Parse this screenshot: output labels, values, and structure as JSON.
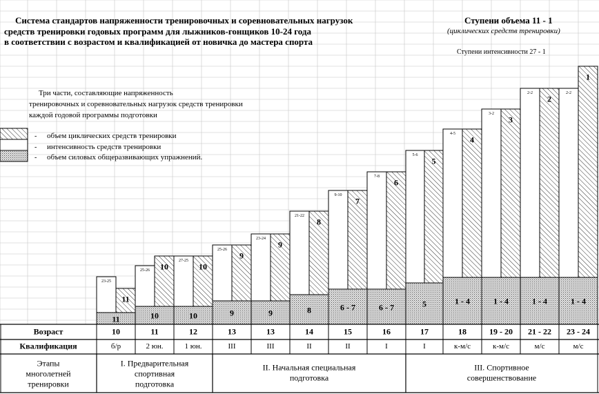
{
  "title_lines": [
    "Система стандартов напряженности тренировочных и соревновательных нагрузок",
    "средств тренировки годовых программ для лыжников-гонщиков  10-24 года",
    "в соответствии с возрастом и квалификацией  от новичка до мастера спорта"
  ],
  "right_header": {
    "title": "Ступени объема 11 - 1",
    "subtitle": "(циклических средств тренировки)",
    "intensity": "Ступени интенсивности 27 - 1"
  },
  "description_lines": [
    "Три части, составляющие напряженность",
    "тренировочных и соревновательных нагрузок средств тренировки",
    "каждой годовой программы подготовки"
  ],
  "legend": [
    {
      "pattern": "hatch",
      "dash": "-",
      "text": "объем циклических средств тренировки"
    },
    {
      "pattern": "blank",
      "dash": "-",
      "text": "интенсивность средств тренировки"
    },
    {
      "pattern": "dots",
      "dash": "-",
      "text": "объем силовых общеразвивающих упражнений."
    }
  ],
  "chart_data": {
    "type": "bar",
    "stacking": "stacked",
    "columns": [
      {
        "age": "10",
        "qual": "б/р",
        "intensity": "23-25",
        "volume": "11",
        "strength": "11"
      },
      {
        "age": "11",
        "qual": "2 юн.",
        "intensity": "25-26",
        "volume": "10",
        "strength": "10"
      },
      {
        "age": "12",
        "qual": "1 юн.",
        "intensity": "27-25",
        "volume": "10",
        "strength": "10"
      },
      {
        "age": "13",
        "qual": "III",
        "intensity": "25-26",
        "volume": "9",
        "strength": "9"
      },
      {
        "age": "13",
        "qual": "III",
        "intensity": "23-24",
        "volume": "9",
        "strength": "9"
      },
      {
        "age": "14",
        "qual": "II",
        "intensity": "21-22",
        "volume": "8",
        "strength": "8"
      },
      {
        "age": "15",
        "qual": "II",
        "intensity": "9-10",
        "volume": "7",
        "strength": "6 - 7"
      },
      {
        "age": "16",
        "qual": "I",
        "intensity": "7-8",
        "volume": "6",
        "strength": "6 - 7"
      },
      {
        "age": "17",
        "qual": "I",
        "intensity": "5-6",
        "volume": "5",
        "strength": "5"
      },
      {
        "age": "18",
        "qual": "к-м/с",
        "intensity": "4-5",
        "volume": "4",
        "strength": "1 - 4"
      },
      {
        "age": "19 - 20",
        "qual": "к-м/с",
        "intensity": "3-2",
        "volume": "3",
        "strength": "1 - 4"
      },
      {
        "age": "21 - 22",
        "qual": "м/с",
        "intensity": "2-2",
        "volume": "2",
        "strength": "1 - 4"
      },
      {
        "age": "23 - 24",
        "qual": "м/с",
        "intensity": "2-2",
        "volume": "1",
        "strength": "1 - 4"
      }
    ]
  },
  "table": {
    "row_age_label": "Возраст",
    "row_qual_label": "Квалификация",
    "stages_label": [
      "Этапы",
      "многолетней",
      "тренировки"
    ],
    "stages": [
      {
        "lines": [
          "I. Предварительная",
          "спортивная",
          "подготовка"
        ]
      },
      {
        "lines": [
          "II. Начальная специальная",
          "подготовка"
        ]
      },
      {
        "lines": [
          "III. Спортивное",
          "совершенствование"
        ]
      }
    ]
  },
  "colors": {
    "grid": "#c6c6c6",
    "line": "#000000",
    "hatch": "#000000"
  }
}
